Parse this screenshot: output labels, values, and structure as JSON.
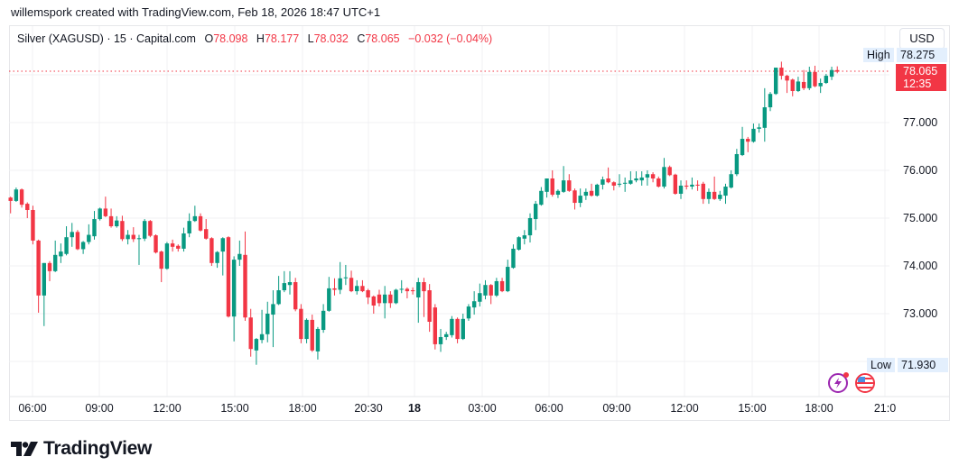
{
  "credit": "willemspork created with TradingView.com, Feb 18, 2026 18:47 UTC+1",
  "legend": {
    "symbol": "Silver (XAGUSD) · 15 · Capital.com",
    "o_label": "O",
    "o": "78.098",
    "h_label": "H",
    "h": "78.177",
    "l_label": "L",
    "l": "78.032",
    "c_label": "C",
    "c": "78.065",
    "change": "−0.032 (−0.04%)"
  },
  "currency": "USD",
  "high_label": "High",
  "high_value": "78.275",
  "low_label": "Low",
  "low_value": "71.930",
  "last_price": "78.065",
  "countdown": "12:35",
  "price_axis": [
    "77.000",
    "76.000",
    "75.000",
    "74.000",
    "73.000"
  ],
  "time_axis": [
    {
      "label": "06:00",
      "bold": false
    },
    {
      "label": "09:00",
      "bold": false
    },
    {
      "label": "12:00",
      "bold": false
    },
    {
      "label": "15:00",
      "bold": false
    },
    {
      "label": "18:00",
      "bold": false
    },
    {
      "label": "20:30",
      "bold": false
    },
    {
      "label": "18",
      "bold": true
    },
    {
      "label": "03:00",
      "bold": false
    },
    {
      "label": "06:00",
      "bold": false
    },
    {
      "label": "09:00",
      "bold": false
    },
    {
      "label": "12:00",
      "bold": false
    },
    {
      "label": "15:00",
      "bold": false
    },
    {
      "label": "18:00",
      "bold": false
    },
    {
      "label": "21:0",
      "bold": false
    }
  ],
  "events": [
    "lightning-event-icon",
    "us-flag-icon"
  ],
  "brand": "TradingView",
  "colors": {
    "up": "#089981",
    "down": "#f23645",
    "accent": "#2962ff",
    "tag_bg": "#e3effd"
  },
  "chart_data": {
    "type": "candlestick",
    "interval": "15",
    "ohlc": [
      [
        75.43,
        75.45,
        75.1,
        75.36
      ],
      [
        75.36,
        75.64,
        75.34,
        75.6
      ],
      [
        75.6,
        75.62,
        75.22,
        75.28
      ],
      [
        75.3,
        75.33,
        75.0,
        75.17
      ],
      [
        75.17,
        75.26,
        74.45,
        74.53
      ],
      [
        74.53,
        74.55,
        73.02,
        73.38
      ],
      [
        73.38,
        74.06,
        72.74,
        74.06
      ],
      [
        74.06,
        74.1,
        73.68,
        73.89
      ],
      [
        73.89,
        74.53,
        73.87,
        74.23
      ],
      [
        74.2,
        74.47,
        74.06,
        74.3
      ],
      [
        74.25,
        74.83,
        74.22,
        74.6
      ],
      [
        74.6,
        74.9,
        74.4,
        74.71
      ],
      [
        74.71,
        74.75,
        74.33,
        74.35
      ],
      [
        74.35,
        74.52,
        74.25,
        74.5
      ],
      [
        74.5,
        74.87,
        74.45,
        74.65
      ],
      [
        74.62,
        75.15,
        74.55,
        74.98
      ],
      [
        74.98,
        75.22,
        74.95,
        75.2
      ],
      [
        75.2,
        75.45,
        75.02,
        75.04
      ],
      [
        75.04,
        75.2,
        74.8,
        74.83
      ],
      [
        74.83,
        75.04,
        74.8,
        74.95
      ],
      [
        74.94,
        75.05,
        74.52,
        74.56
      ],
      [
        74.56,
        74.75,
        74.45,
        74.65
      ],
      [
        74.65,
        74.81,
        74.5,
        74.56
      ],
      [
        74.56,
        74.65,
        74.02,
        74.58
      ],
      [
        74.57,
        74.98,
        74.52,
        74.94
      ],
      [
        74.94,
        74.96,
        74.6,
        74.63
      ],
      [
        74.64,
        74.66,
        74.26,
        74.28
      ],
      [
        74.3,
        74.32,
        73.66,
        73.94
      ],
      [
        73.94,
        74.5,
        73.92,
        74.47
      ],
      [
        74.47,
        74.55,
        74.3,
        74.4
      ],
      [
        74.42,
        74.45,
        74.3,
        74.36
      ],
      [
        74.36,
        74.8,
        74.3,
        74.68
      ],
      [
        74.68,
        75.1,
        74.6,
        74.94
      ],
      [
        74.94,
        75.26,
        74.92,
        75.04
      ],
      [
        75.04,
        75.1,
        74.72,
        74.74
      ],
      [
        74.77,
        74.98,
        74.55,
        74.57
      ],
      [
        74.58,
        74.6,
        74.0,
        74.06
      ],
      [
        74.06,
        74.31,
        73.96,
        74.29
      ],
      [
        74.3,
        74.6,
        73.8,
        74.58
      ],
      [
        74.6,
        74.62,
        72.92,
        72.94
      ],
      [
        72.94,
        74.2,
        72.42,
        74.13
      ],
      [
        74.13,
        74.53,
        74.0,
        74.25
      ],
      [
        74.23,
        74.72,
        72.85,
        72.92
      ],
      [
        72.92,
        73.1,
        72.1,
        72.26
      ],
      [
        72.23,
        72.49,
        71.93,
        72.47
      ],
      [
        72.45,
        73.08,
        72.38,
        72.57
      ],
      [
        72.57,
        73.25,
        72.4,
        73.0
      ],
      [
        72.98,
        73.49,
        72.3,
        73.2
      ],
      [
        73.2,
        73.79,
        73.18,
        73.49
      ],
      [
        73.49,
        73.89,
        73.45,
        73.64
      ],
      [
        73.6,
        73.89,
        73.4,
        73.66
      ],
      [
        73.66,
        73.75,
        73.05,
        73.09
      ],
      [
        73.1,
        73.2,
        72.38,
        72.47
      ],
      [
        72.47,
        72.9,
        72.38,
        72.87
      ],
      [
        72.87,
        72.98,
        72.2,
        72.23
      ],
      [
        72.21,
        72.72,
        72.04,
        72.68
      ],
      [
        72.66,
        73.2,
        72.6,
        73.06
      ],
      [
        73.06,
        73.77,
        73.04,
        73.53
      ],
      [
        73.53,
        73.74,
        73.38,
        73.5
      ],
      [
        73.5,
        74.08,
        73.41,
        73.74
      ],
      [
        73.75,
        74.02,
        73.6,
        73.76
      ],
      [
        73.75,
        73.9,
        73.45,
        73.47
      ],
      [
        73.47,
        73.7,
        73.4,
        73.58
      ],
      [
        73.58,
        73.7,
        73.45,
        73.47
      ],
      [
        73.49,
        73.52,
        73.2,
        73.34
      ],
      [
        73.36,
        73.38,
        73.0,
        73.17
      ],
      [
        73.4,
        73.5,
        73.15,
        73.22
      ],
      [
        73.22,
        73.58,
        72.9,
        73.4
      ],
      [
        73.4,
        73.47,
        73.12,
        73.22
      ],
      [
        73.22,
        73.52,
        73.2,
        73.5
      ],
      [
        73.52,
        73.7,
        73.43,
        73.52
      ],
      [
        73.52,
        73.55,
        73.32,
        73.47
      ],
      [
        73.49,
        73.55,
        73.4,
        73.47
      ],
      [
        73.34,
        73.75,
        72.81,
        73.66
      ],
      [
        73.66,
        73.75,
        72.93,
        73.47
      ],
      [
        73.49,
        73.62,
        72.62,
        72.83
      ],
      [
        73.13,
        73.2,
        72.25,
        72.36
      ],
      [
        72.36,
        72.68,
        72.2,
        72.51
      ],
      [
        72.51,
        72.62,
        72.45,
        72.57
      ],
      [
        72.55,
        72.95,
        72.5,
        72.89
      ],
      [
        72.89,
        72.92,
        72.38,
        72.47
      ],
      [
        72.47,
        73.0,
        72.45,
        72.89
      ],
      [
        72.9,
        73.2,
        72.85,
        73.15
      ],
      [
        73.13,
        73.47,
        72.98,
        73.26
      ],
      [
        73.25,
        73.63,
        73.15,
        73.43
      ],
      [
        73.38,
        73.7,
        73.3,
        73.6
      ],
      [
        73.6,
        73.62,
        73.2,
        73.38
      ],
      [
        73.38,
        73.75,
        73.35,
        73.68
      ],
      [
        73.68,
        73.75,
        73.45,
        73.47
      ],
      [
        73.47,
        74.13,
        73.45,
        73.98
      ],
      [
        73.96,
        74.45,
        73.94,
        74.36
      ],
      [
        74.34,
        74.62,
        74.32,
        74.6
      ],
      [
        74.57,
        74.75,
        74.45,
        74.64
      ],
      [
        74.64,
        75.1,
        74.49,
        75.0
      ],
      [
        74.98,
        75.36,
        74.75,
        75.3
      ],
      [
        75.28,
        75.65,
        75.26,
        75.57
      ],
      [
        75.55,
        75.83,
        75.43,
        75.83
      ],
      [
        75.83,
        76.0,
        75.45,
        75.49
      ],
      [
        75.49,
        75.6,
        75.42,
        75.57
      ],
      [
        75.55,
        76.09,
        75.53,
        75.79
      ],
      [
        75.79,
        75.92,
        75.55,
        75.57
      ],
      [
        75.58,
        75.62,
        75.18,
        75.32
      ],
      [
        75.32,
        75.62,
        75.23,
        75.47
      ],
      [
        75.47,
        75.62,
        75.38,
        75.55
      ],
      [
        75.57,
        75.72,
        75.45,
        75.47
      ],
      [
        75.47,
        75.72,
        75.45,
        75.7
      ],
      [
        75.7,
        75.87,
        75.6,
        75.81
      ],
      [
        75.83,
        76.06,
        75.73,
        75.75
      ],
      [
        75.75,
        75.77,
        75.58,
        75.68
      ],
      [
        75.7,
        75.92,
        75.65,
        75.72
      ],
      [
        75.72,
        75.85,
        75.55,
        75.74
      ],
      [
        75.72,
        75.98,
        75.7,
        75.79
      ],
      [
        75.79,
        75.98,
        75.75,
        75.83
      ],
      [
        75.79,
        75.98,
        75.68,
        75.85
      ],
      [
        75.85,
        76.0,
        75.68,
        75.92
      ],
      [
        75.92,
        75.96,
        75.75,
        75.83
      ],
      [
        75.83,
        75.87,
        75.64,
        75.66
      ],
      [
        75.66,
        76.26,
        75.62,
        76.07
      ],
      [
        76.07,
        76.1,
        75.88,
        75.9
      ],
      [
        75.91,
        75.93,
        75.49,
        75.51
      ],
      [
        75.51,
        75.79,
        75.4,
        75.68
      ],
      [
        75.68,
        75.79,
        75.6,
        75.66
      ],
      [
        75.66,
        75.85,
        75.6,
        75.7
      ],
      [
        75.7,
        75.79,
        75.57,
        75.68
      ],
      [
        75.72,
        75.76,
        75.3,
        75.4
      ],
      [
        75.4,
        75.62,
        75.3,
        75.55
      ],
      [
        75.55,
        75.87,
        75.38,
        75.4
      ],
      [
        75.4,
        75.57,
        75.36,
        75.49
      ],
      [
        75.47,
        75.72,
        75.3,
        75.66
      ],
      [
        75.64,
        76.0,
        75.62,
        75.92
      ],
      [
        75.92,
        76.45,
        75.88,
        76.34
      ],
      [
        76.32,
        76.91,
        76.3,
        76.66
      ],
      [
        76.66,
        76.7,
        76.38,
        76.6
      ],
      [
        76.6,
        76.98,
        76.58,
        76.87
      ],
      [
        76.87,
        76.98,
        76.79,
        76.9
      ],
      [
        76.89,
        77.72,
        76.6,
        77.32
      ],
      [
        77.32,
        77.64,
        77.24,
        77.6
      ],
      [
        77.6,
        78.15,
        77.58,
        78.15
      ],
      [
        78.15,
        78.275,
        77.9,
        77.98
      ],
      [
        77.98,
        78.0,
        77.62,
        77.88
      ],
      [
        77.9,
        77.92,
        77.55,
        77.66
      ],
      [
        77.66,
        77.96,
        77.64,
        77.86
      ],
      [
        77.85,
        78.1,
        77.68,
        77.72
      ],
      [
        77.72,
        78.17,
        77.68,
        78.06
      ],
      [
        78.06,
        78.19,
        77.74,
        77.76
      ],
      [
        77.76,
        77.92,
        77.62,
        77.83
      ],
      [
        77.83,
        78.02,
        77.81,
        77.98
      ],
      [
        77.96,
        78.17,
        77.89,
        78.1
      ],
      [
        78.098,
        78.177,
        78.032,
        78.065
      ]
    ],
    "y_range": [
      71.93,
      78.275
    ],
    "grid": true
  }
}
